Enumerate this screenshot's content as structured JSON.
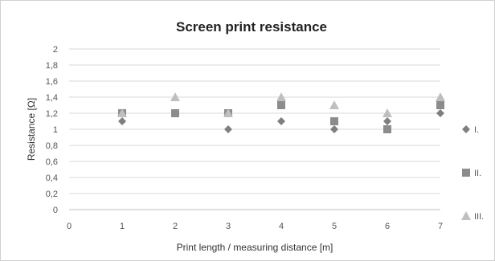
{
  "chart_data": {
    "type": "scatter",
    "title": "Screen print resistance",
    "xlabel": "Print length / measuring distance [m]",
    "ylabel": "Resistance [Ω]",
    "xlim": [
      0,
      7
    ],
    "ylim": [
      0,
      2
    ],
    "x_ticks": [
      "0",
      "1",
      "2",
      "3",
      "4",
      "5",
      "6",
      "7"
    ],
    "y_ticks": [
      "0",
      "0,2",
      "0,4",
      "0,6",
      "0,8",
      "1",
      "1,2",
      "1,4",
      "1,6",
      "1,8",
      "2"
    ],
    "grid": "horizontal",
    "legend_position": "right",
    "series": [
      {
        "name": "I.",
        "marker": "diamond",
        "color": "#7f7f7f",
        "points": [
          [
            1,
            1.1
          ],
          [
            2,
            1.2
          ],
          [
            3,
            1.0
          ],
          [
            4,
            1.1
          ],
          [
            5,
            1.0
          ],
          [
            6,
            1.1
          ],
          [
            7,
            1.2
          ]
        ]
      },
      {
        "name": "II.",
        "marker": "square",
        "color": "#8c8c8c",
        "points": [
          [
            1,
            1.2
          ],
          [
            2,
            1.2
          ],
          [
            3,
            1.2
          ],
          [
            4,
            1.3
          ],
          [
            5,
            1.1
          ],
          [
            6,
            1.0
          ],
          [
            7,
            1.3
          ]
        ]
      },
      {
        "name": "III.",
        "marker": "triangle",
        "color": "#bfbfbf",
        "points": [
          [
            1,
            1.2
          ],
          [
            2,
            1.4
          ],
          [
            3,
            1.2
          ],
          [
            4,
            1.4
          ],
          [
            5,
            1.3
          ],
          [
            6,
            1.2
          ],
          [
            7,
            1.4
          ]
        ]
      }
    ]
  }
}
